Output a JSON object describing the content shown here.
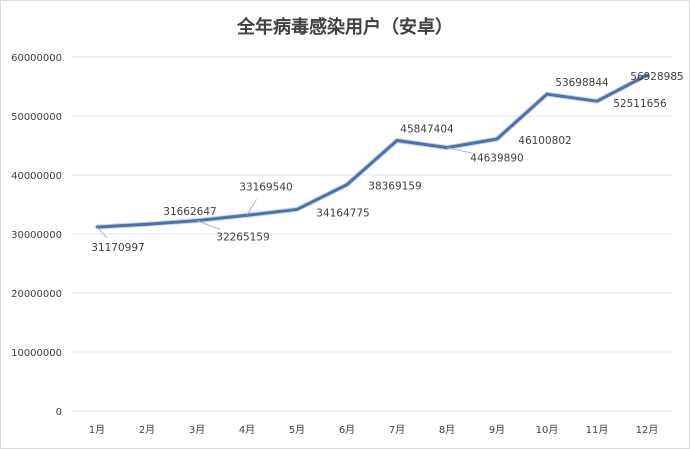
{
  "chart_data": {
    "type": "line",
    "title": "全年病毒感染用户（安卓）",
    "categories": [
      "1月",
      "2月",
      "3月",
      "4月",
      "5月",
      "6月",
      "7月",
      "8月",
      "9月",
      "10月",
      "11月",
      "12月"
    ],
    "values": [
      31170997,
      31662647,
      32265159,
      33169540,
      34164775,
      38369159,
      45847404,
      44639890,
      46100802,
      53698844,
      52511656,
      56928985
    ],
    "ylim": [
      0,
      60000000
    ],
    "yticks": [
      "0",
      "10000000",
      "20000000",
      "30000000",
      "40000000",
      "50000000",
      "60000000"
    ],
    "xlabel": "",
    "ylabel": "",
    "grid": true,
    "legend": "none",
    "line_color": "#4a72b0",
    "grid_color": "#dfe6ee"
  }
}
